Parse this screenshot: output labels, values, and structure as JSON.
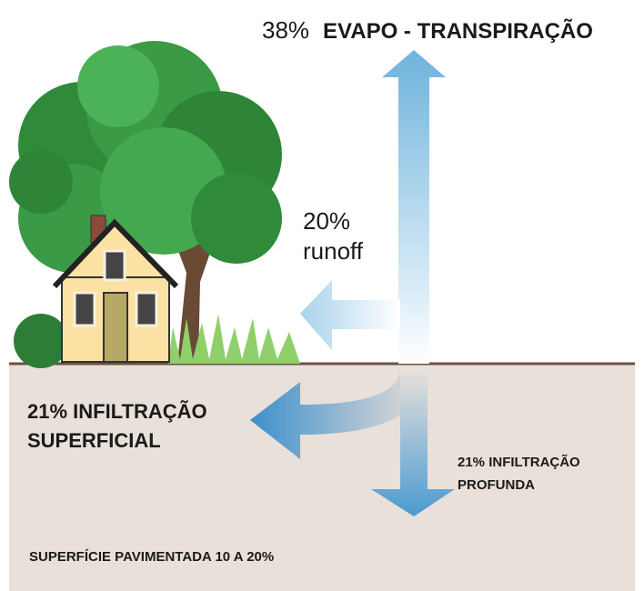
{
  "evapotranspiration": {
    "percent": "38%",
    "label": "EVAPO - TRANSPIRAÇÃO"
  },
  "runoff": {
    "percent": "20%",
    "label": "runoff"
  },
  "shallow_infiltration": {
    "lines": [
      "21% INFILTRAÇÃO",
      "SUPERFICIAL"
    ]
  },
  "deep_infiltration": {
    "lines": [
      "21% INFILTRAÇÃO",
      "PROFUNDA"
    ]
  },
  "footer": "SUPERFÍCIE PAVIMENTADA 10 A 20%"
}
